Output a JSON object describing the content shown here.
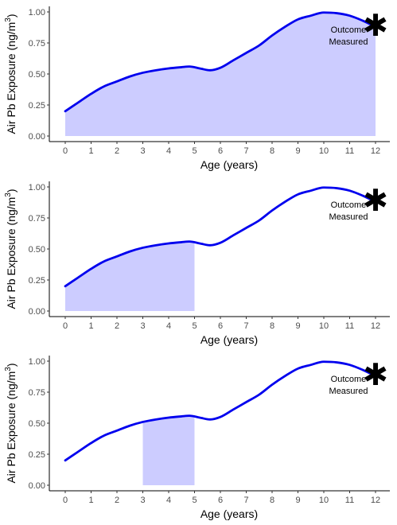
{
  "chart_data": [
    {
      "type": "line",
      "title": "",
      "xlabel": "Age (years)",
      "ylabel": "Air Pb Exposure (ng/m",
      "ylabel_sup": "3",
      "ylabel_close": ")",
      "xlim": [
        0,
        12
      ],
      "ylim": [
        0,
        1
      ],
      "x_ticks": [
        "0",
        "1",
        "2",
        "3",
        "4",
        "5",
        "6",
        "7",
        "8",
        "9",
        "10",
        "11",
        "12"
      ],
      "y_ticks": [
        "0.00",
        "0.25",
        "0.50",
        "0.75",
        "1.00"
      ],
      "grid": false,
      "series": [
        {
          "color": "#0000ee",
          "x": [
            0,
            0.5,
            1,
            1.5,
            2,
            2.5,
            3,
            3.5,
            4,
            4.5,
            4.8,
            5.2,
            5.6,
            6,
            6.5,
            7,
            7.5,
            8,
            8.5,
            9,
            9.5,
            10,
            10.5,
            11,
            11.5,
            12
          ],
          "y": [
            0.2,
            0.27,
            0.34,
            0.4,
            0.44,
            0.48,
            0.51,
            0.53,
            0.545,
            0.555,
            0.56,
            0.545,
            0.53,
            0.55,
            0.61,
            0.67,
            0.73,
            0.81,
            0.88,
            0.94,
            0.97,
            0.995,
            0.99,
            0.97,
            0.93,
            0.88
          ]
        }
      ],
      "shaded_region": {
        "from": 0,
        "to": 12,
        "color": "#ccccff"
      },
      "annotations": {
        "line1": "Outcome",
        "line2": "Measured",
        "marker": "✱"
      }
    },
    {
      "type": "line",
      "title": "",
      "xlabel": "Age (years)",
      "ylabel": "Air Pb Exposure (ng/m",
      "ylabel_sup": "3",
      "ylabel_close": ")",
      "xlim": [
        0,
        12
      ],
      "ylim": [
        0,
        1
      ],
      "x_ticks": [
        "0",
        "1",
        "2",
        "3",
        "4",
        "5",
        "6",
        "7",
        "8",
        "9",
        "10",
        "11",
        "12"
      ],
      "y_ticks": [
        "0.00",
        "0.25",
        "0.50",
        "0.75",
        "1.00"
      ],
      "grid": false,
      "series": [
        {
          "color": "#0000ee",
          "x": [
            0,
            0.5,
            1,
            1.5,
            2,
            2.5,
            3,
            3.5,
            4,
            4.5,
            4.8,
            5.2,
            5.6,
            6,
            6.5,
            7,
            7.5,
            8,
            8.5,
            9,
            9.5,
            10,
            10.5,
            11,
            11.5,
            12
          ],
          "y": [
            0.2,
            0.27,
            0.34,
            0.4,
            0.44,
            0.48,
            0.51,
            0.53,
            0.545,
            0.555,
            0.56,
            0.545,
            0.53,
            0.55,
            0.61,
            0.67,
            0.73,
            0.81,
            0.88,
            0.94,
            0.97,
            0.995,
            0.99,
            0.97,
            0.93,
            0.88
          ]
        }
      ],
      "shaded_region": {
        "from": 0,
        "to": 5,
        "color": "#ccccff"
      },
      "annotations": {
        "line1": "Outcome",
        "line2": "Measured",
        "marker": "✱"
      }
    },
    {
      "type": "line",
      "title": "",
      "xlabel": "Age (years)",
      "ylabel": "Air Pb Exposure (ng/m",
      "ylabel_sup": "3",
      "ylabel_close": ")",
      "xlim": [
        0,
        12
      ],
      "ylim": [
        0,
        1
      ],
      "x_ticks": [
        "0",
        "1",
        "2",
        "3",
        "4",
        "5",
        "6",
        "7",
        "8",
        "9",
        "10",
        "11",
        "12"
      ],
      "y_ticks": [
        "0.00",
        "0.25",
        "0.50",
        "0.75",
        "1.00"
      ],
      "grid": false,
      "series": [
        {
          "color": "#0000ee",
          "x": [
            0,
            0.5,
            1,
            1.5,
            2,
            2.5,
            3,
            3.5,
            4,
            4.5,
            4.8,
            5.2,
            5.6,
            6,
            6.5,
            7,
            7.5,
            8,
            8.5,
            9,
            9.5,
            10,
            10.5,
            11,
            11.5,
            12
          ],
          "y": [
            0.2,
            0.27,
            0.34,
            0.4,
            0.44,
            0.48,
            0.51,
            0.53,
            0.545,
            0.555,
            0.56,
            0.545,
            0.53,
            0.55,
            0.61,
            0.67,
            0.73,
            0.81,
            0.88,
            0.94,
            0.97,
            0.995,
            0.99,
            0.97,
            0.93,
            0.88
          ]
        }
      ],
      "shaded_region": {
        "from": 3,
        "to": 5,
        "color": "#ccccff"
      },
      "annotations": {
        "line1": "Outcome",
        "line2": "Measured",
        "marker": "✱"
      }
    }
  ]
}
